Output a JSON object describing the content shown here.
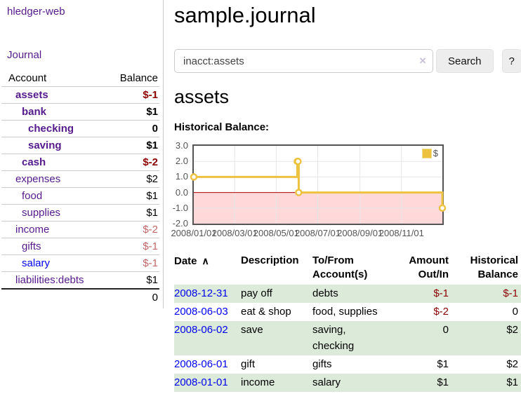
{
  "colors": {
    "link_purple": "#551a8b",
    "link_blue": "#0000ee",
    "negative_strong": "#8b0000",
    "negative_soft": "#c36565",
    "stripe_green": "#dcead9",
    "chart_line": "#edc240"
  },
  "sidebar": {
    "brand": "hledger-web",
    "journal_link": "Journal",
    "table": {
      "account_header": "Account",
      "balance_header": "Balance",
      "rows": [
        {
          "name": "assets",
          "balance": "$-1"
        },
        {
          "name": "bank",
          "balance": "$1"
        },
        {
          "name": "checking",
          "balance": "0"
        },
        {
          "name": "saving",
          "balance": "$1"
        },
        {
          "name": "cash",
          "balance": "$-2"
        },
        {
          "name": "expenses",
          "balance": "$2"
        },
        {
          "name": "food",
          "balance": "$1"
        },
        {
          "name": "supplies",
          "balance": "$1"
        },
        {
          "name": "income",
          "balance": "$-2"
        },
        {
          "name": "gifts",
          "balance": "$-1"
        },
        {
          "name": "salary",
          "balance": "$-1"
        },
        {
          "name": "liabilities:debts",
          "balance": "$1"
        }
      ],
      "total": "0"
    }
  },
  "main": {
    "title": "sample.journal",
    "search": {
      "value": "inacct:assets",
      "clear_icon": "×",
      "search_button": "Search",
      "help_button": "?"
    },
    "account_heading": "assets",
    "chart_title": "Historical Balance:"
  },
  "chart_data": {
    "type": "line",
    "step": true,
    "title": "Historical Balance:",
    "xlim": [
      "2008-01-01",
      "2008-12-31"
    ],
    "ylim": [
      -2,
      3
    ],
    "yticks": [
      {
        "v": 3,
        "label": "3.0"
      },
      {
        "v": 2,
        "label": "2.0"
      },
      {
        "v": 1,
        "label": "1.0"
      },
      {
        "v": 0,
        "label": "0.0"
      },
      {
        "v": -1,
        "label": "-1.0"
      },
      {
        "v": -2,
        "label": "-2.0"
      }
    ],
    "xticks": [
      {
        "date": "2008-01-01",
        "label": "2008/01/01"
      },
      {
        "date": "2008-03-01",
        "label": "2008/03/01"
      },
      {
        "date": "2008-05-01",
        "label": "2008/05/01"
      },
      {
        "date": "2008-07-01",
        "label": "2008/07/01"
      },
      {
        "date": "2008-09-01",
        "label": "2008/09/01"
      },
      {
        "date": "2008-11-01",
        "label": "2008/11/01"
      }
    ],
    "series": [
      {
        "name": "$",
        "color": "#edc240",
        "points": [
          [
            "2008-01-01",
            1
          ],
          [
            "2008-06-01",
            2
          ],
          [
            "2008-06-02",
            2
          ],
          [
            "2008-06-03",
            0
          ],
          [
            "2008-12-31",
            -1
          ]
        ]
      }
    ],
    "grid": true,
    "grid_color": "#e6e6e6",
    "negative_fill": "#ffd9d9",
    "zero_line": "#aa0000",
    "border_color": "#545454",
    "legend_position": "top-right"
  },
  "register": {
    "headers": {
      "date": "Date",
      "description": "Description",
      "accounts": "To/From Account(s)",
      "amount": "Amount Out/In",
      "balance": "Historical Balance"
    },
    "sort_icon": "∧",
    "rows": [
      {
        "date": "2008-12-31",
        "description": "pay off",
        "accounts": "debts",
        "amount": "$-1",
        "balance": "$-1"
      },
      {
        "date": "2008-06-03",
        "description": "eat & shop",
        "accounts": "food, supplies",
        "amount": "$-2",
        "balance": "0"
      },
      {
        "date": "2008-06-02",
        "description": "save",
        "accounts": "saving, checking",
        "amount": "0",
        "balance": "$2"
      },
      {
        "date": "2008-06-01",
        "description": "gift",
        "accounts": "gifts",
        "amount": "$1",
        "balance": "$2"
      },
      {
        "date": "2008-01-01",
        "description": "income",
        "accounts": "salary",
        "amount": "$1",
        "balance": "$1"
      }
    ]
  }
}
